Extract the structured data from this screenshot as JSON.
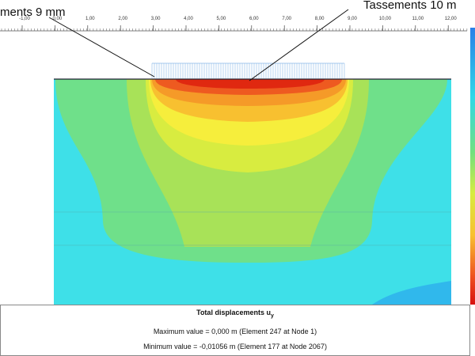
{
  "annotations": [
    "ments 9 mm",
    "Tassements 10 m"
  ],
  "ruler": {
    "labels": [
      "-1,00",
      "0,00",
      "1,00",
      "2,00",
      "3,00",
      "4,00",
      "5,00",
      "6,00",
      "7,00",
      "8,00",
      "9,00",
      "10,00",
      "11,00",
      "12,00"
    ]
  },
  "info": {
    "title": "Total displacements u",
    "subscript": "y",
    "lines": [
      "Maximum value = 0,000 m (Element 247 at Node 1)",
      "Minimum value = -0,01056 m (Element 177 at Node 2067)"
    ]
  }
}
